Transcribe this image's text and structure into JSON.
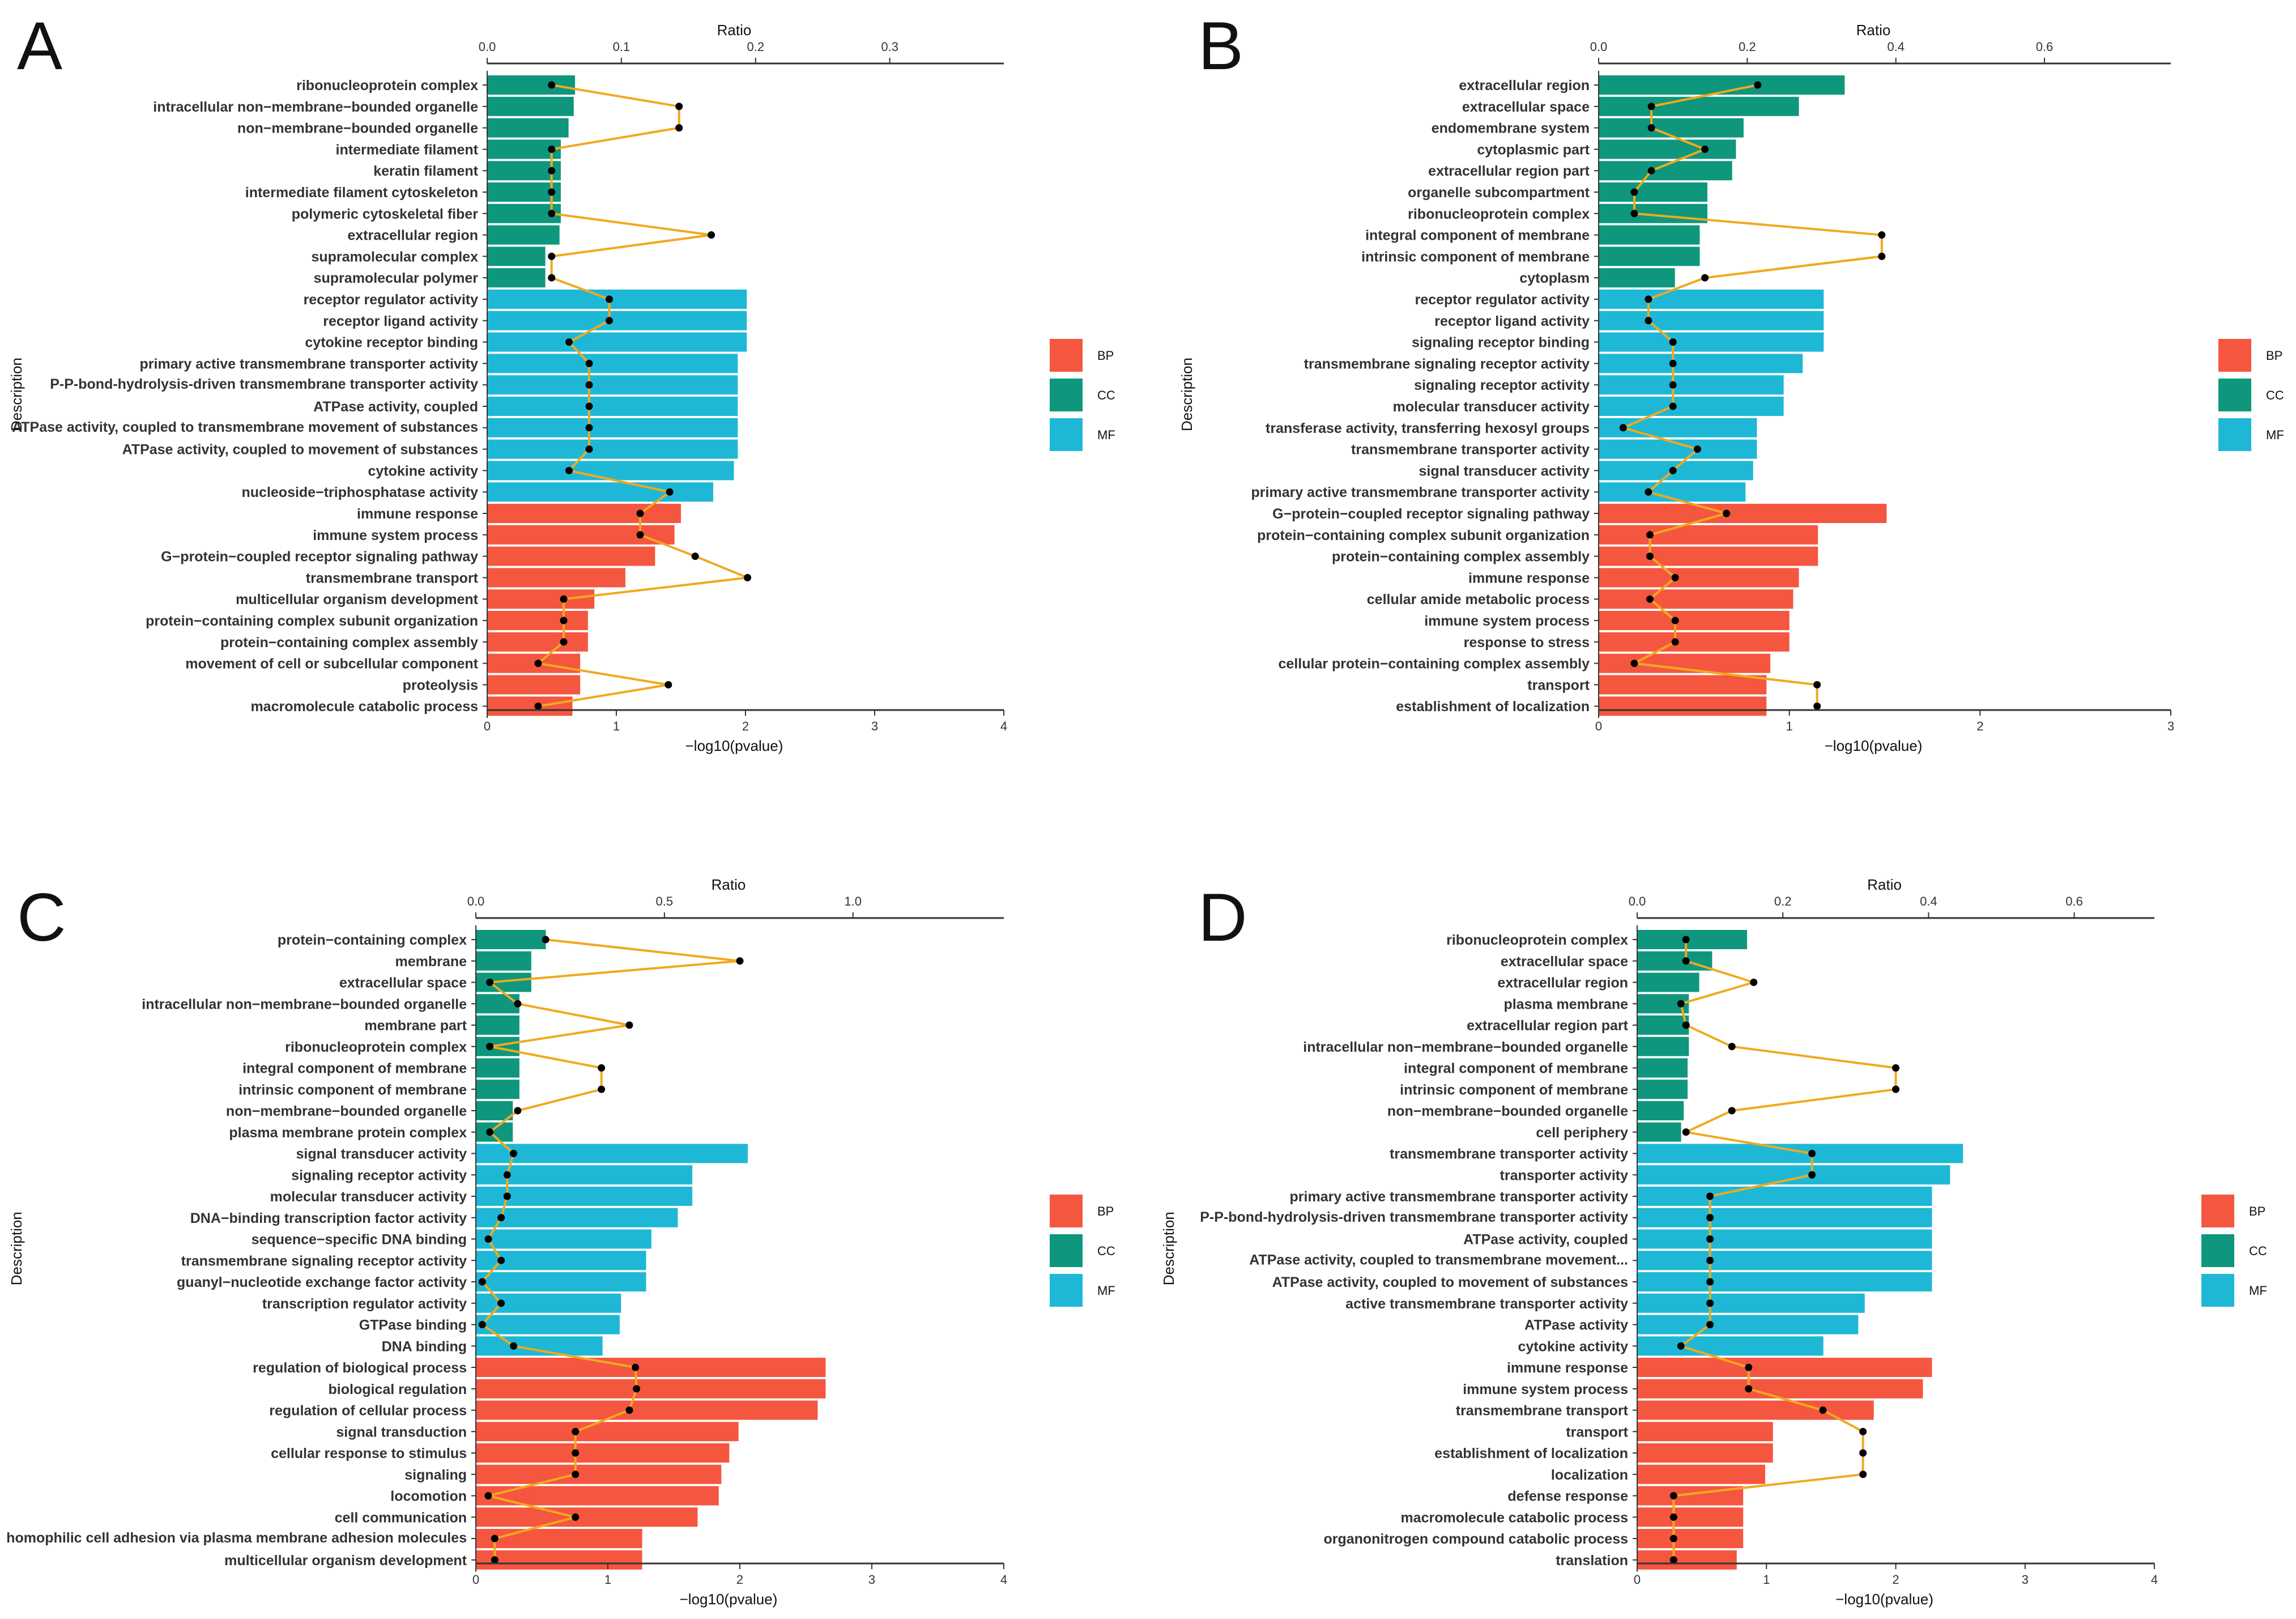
{
  "colors": {
    "BP": "#F5563F",
    "CC": "#0E977C",
    "MF": "#1EB8D6",
    "line": "#F0A91E",
    "point": "#000000"
  },
  "chart_data": [
    {
      "type": "bar",
      "panel": "A",
      "xlabel": "−log10(pvalue)",
      "ylabel": "Description",
      "ratio_label": "Ratio",
      "xlim": [
        0,
        4
      ],
      "xticks": [
        "0",
        "1",
        "2",
        "3",
        "4"
      ],
      "ratio_lim": [
        0,
        0.385
      ],
      "ratio_ticks": [
        "0.0",
        "0.1",
        "0.2",
        "0.3"
      ],
      "legend": [
        "BP",
        "CC",
        "MF"
      ],
      "categories": [
        "ribonucleoprotein complex",
        "intracellular non−membrane−bounded organelle",
        "non−membrane−bounded organelle",
        "intermediate filament",
        "keratin filament",
        "intermediate filament cytoskeleton",
        "polymeric cytoskeletal fiber",
        "extracellular region",
        "supramolecular complex",
        "supramolecular polymer",
        "receptor regulator activity",
        "receptor ligand activity",
        "cytokine receptor binding",
        "primary active transmembrane transporter activity",
        "P-P-bond-hydrolysis-driven transmembrane transporter activity",
        "ATPase activity, coupled",
        "ATPase activity, coupled to transmembrane movement of substances",
        "ATPase activity, coupled to movement of substances",
        "cytokine activity",
        "nucleoside−triphosphatase activity",
        "immune response",
        "immune system process",
        "G−protein−coupled receptor signaling pathway",
        "transmembrane transport",
        "multicellular organism development",
        "protein−containing complex subunit organization",
        "protein−containing complex assembly",
        "movement of cell or subcellular component",
        "proteolysis",
        "macromolecule catabolic process"
      ],
      "groups": [
        "CC",
        "CC",
        "CC",
        "CC",
        "CC",
        "CC",
        "CC",
        "CC",
        "CC",
        "CC",
        "MF",
        "MF",
        "MF",
        "MF",
        "MF",
        "MF",
        "MF",
        "MF",
        "MF",
        "MF",
        "BP",
        "BP",
        "BP",
        "BP",
        "BP",
        "BP",
        "BP",
        "BP",
        "BP",
        "BP"
      ],
      "values": [
        0.68,
        0.67,
        0.63,
        0.57,
        0.57,
        0.57,
        0.57,
        0.56,
        0.45,
        0.45,
        2.01,
        2.01,
        2.01,
        1.94,
        1.94,
        1.94,
        1.94,
        1.94,
        1.91,
        1.75,
        1.5,
        1.45,
        1.3,
        1.07,
        0.83,
        0.78,
        0.78,
        0.72,
        0.72,
        0.66
      ],
      "ratio": [
        0.048,
        0.143,
        0.143,
        0.048,
        0.048,
        0.048,
        0.048,
        0.167,
        0.048,
        0.048,
        0.091,
        0.091,
        0.061,
        0.076,
        0.076,
        0.076,
        0.076,
        0.076,
        0.061,
        0.136,
        0.114,
        0.114,
        0.155,
        0.194,
        0.057,
        0.057,
        0.057,
        0.038,
        0.135,
        0.038
      ]
    },
    {
      "type": "bar",
      "panel": "B",
      "xlabel": "−log10(pvalue)",
      "ylabel": "Description",
      "ratio_label": "Ratio",
      "xlim": [
        0,
        3
      ],
      "xticks": [
        "0",
        "1",
        "2",
        "3"
      ],
      "ratio_lim": [
        0,
        0.77
      ],
      "ratio_ticks": [
        "0.0",
        "0.2",
        "0.4",
        "0.6"
      ],
      "legend": [
        "BP",
        "CC",
        "MF"
      ],
      "categories": [
        "extracellular region",
        "extracellular space",
        "endomembrane system",
        "cytoplasmic part",
        "extracellular region part",
        "organelle subcompartment",
        "ribonucleoprotein complex",
        "integral component of membrane",
        "intrinsic component of membrane",
        "cytoplasm",
        "receptor regulator activity",
        "receptor ligand activity",
        "signaling receptor binding",
        "transmembrane signaling receptor activity",
        "signaling receptor activity",
        "molecular transducer activity",
        "transferase activity, transferring hexosyl groups",
        "transmembrane transporter activity",
        "signal transducer activity",
        "primary active transmembrane transporter activity",
        "G−protein−coupled receptor signaling pathway",
        "protein−containing complex subunit organization",
        "protein−containing complex assembly",
        "immune response",
        "cellular amide metabolic process",
        "immune system process",
        "response to stress",
        "cellular protein−containing complex assembly",
        "transport",
        "establishment of localization"
      ],
      "groups": [
        "CC",
        "CC",
        "CC",
        "CC",
        "CC",
        "CC",
        "CC",
        "CC",
        "CC",
        "CC",
        "MF",
        "MF",
        "MF",
        "MF",
        "MF",
        "MF",
        "MF",
        "MF",
        "MF",
        "MF",
        "BP",
        "BP",
        "BP",
        "BP",
        "BP",
        "BP",
        "BP",
        "BP",
        "BP",
        "BP"
      ],
      "values": [
        1.29,
        1.05,
        0.76,
        0.72,
        0.7,
        0.57,
        0.57,
        0.53,
        0.53,
        0.4,
        1.18,
        1.18,
        1.18,
        1.07,
        0.97,
        0.97,
        0.83,
        0.83,
        0.81,
        0.77,
        1.51,
        1.15,
        1.15,
        1.05,
        1.02,
        1.0,
        1.0,
        0.9,
        0.88,
        0.88
      ],
      "ratio": [
        0.214,
        0.071,
        0.071,
        0.143,
        0.071,
        0.048,
        0.048,
        0.381,
        0.381,
        0.143,
        0.067,
        0.067,
        0.1,
        0.1,
        0.1,
        0.1,
        0.033,
        0.133,
        0.1,
        0.067,
        0.172,
        0.069,
        0.069,
        0.103,
        0.069,
        0.103,
        0.103,
        0.048,
        0.294,
        0.294
      ]
    },
    {
      "type": "bar",
      "panel": "C",
      "xlabel": "−log10(pvalue)",
      "ylabel": "Description",
      "ratio_label": "Ratio",
      "xlim": [
        0,
        4
      ],
      "xticks": [
        "0",
        "1",
        "2",
        "3",
        "4"
      ],
      "ratio_lim": [
        0,
        1.4
      ],
      "ratio_ticks": [
        "0.0",
        "0.5",
        "1.0"
      ],
      "legend": [
        "BP",
        "CC",
        "MF"
      ],
      "categories": [
        "protein−containing complex",
        "membrane",
        "extracellular space",
        "intracellular non−membrane−bounded organelle",
        "membrane part",
        "ribonucleoprotein complex",
        "integral component of membrane",
        "intrinsic component of membrane",
        "non−membrane−bounded organelle",
        "plasma membrane protein complex",
        "signal transducer activity",
        "signaling receptor activity",
        "molecular transducer activity",
        "DNA−binding transcription factor activity",
        "sequence−specific DNA binding",
        "transmembrane signaling receptor activity",
        "guanyl−nucleotide exchange factor activity",
        "transcription regulator activity",
        "GTPase binding",
        "DNA binding",
        "regulation of biological process",
        "biological regulation",
        "regulation of cellular process",
        "signal transduction",
        "cellular response to stimulus",
        "signaling",
        "locomotion",
        "cell communication",
        "homophilic cell adhesion via plasma membrane adhesion molecules",
        "multicellular organism development"
      ],
      "groups": [
        "CC",
        "CC",
        "CC",
        "CC",
        "CC",
        "CC",
        "CC",
        "CC",
        "CC",
        "CC",
        "MF",
        "MF",
        "MF",
        "MF",
        "MF",
        "MF",
        "MF",
        "MF",
        "MF",
        "MF",
        "BP",
        "BP",
        "BP",
        "BP",
        "BP",
        "BP",
        "BP",
        "BP",
        "BP",
        "BP"
      ],
      "values": [
        0.53,
        0.42,
        0.42,
        0.33,
        0.33,
        0.33,
        0.33,
        0.33,
        0.28,
        0.28,
        2.06,
        1.64,
        1.64,
        1.53,
        1.33,
        1.29,
        1.29,
        1.1,
        1.09,
        0.96,
        2.65,
        2.65,
        2.59,
        1.99,
        1.92,
        1.86,
        1.84,
        1.68,
        1.26,
        1.26
      ],
      "ratio": [
        0.185,
        0.7,
        0.037,
        0.111,
        0.407,
        0.037,
        0.333,
        0.333,
        0.111,
        0.037,
        0.1,
        0.083,
        0.083,
        0.067,
        0.033,
        0.067,
        0.017,
        0.067,
        0.017,
        0.1,
        0.423,
        0.426,
        0.407,
        0.264,
        0.264,
        0.264,
        0.033,
        0.264,
        0.05,
        0.05
      ]
    },
    {
      "type": "bar",
      "panel": "D",
      "xlabel": "−log10(pvalue)",
      "ylabel": "Description",
      "ratio_label": "Ratio",
      "xlim": [
        0,
        4
      ],
      "xticks": [
        "0",
        "1",
        "2",
        "3",
        "4"
      ],
      "ratio_lim": [
        0,
        0.71
      ],
      "ratio_ticks": [
        "0.0",
        "0.2",
        "0.4",
        "0.6"
      ],
      "legend": [
        "BP",
        "CC",
        "MF"
      ],
      "categories": [
        "ribonucleoprotein complex",
        "extracellular space",
        "extracellular region",
        "plasma membrane",
        "extracellular region part",
        "intracellular non−membrane−bounded organelle",
        "integral component of membrane",
        "intrinsic component of membrane",
        "non−membrane−bounded organelle",
        "cell periphery",
        "transmembrane transporter activity",
        "transporter activity",
        "primary active transmembrane transporter activity",
        "P-P-bond-hydrolysis-driven transmembrane transporter activity",
        "ATPase activity, coupled",
        "ATPase activity, coupled to transmembrane movement...",
        "ATPase activity, coupled to movement of substances",
        "active transmembrane transporter activity",
        "ATPase activity",
        "cytokine activity",
        "immune response",
        "immune system process",
        "transmembrane transport",
        "transport",
        "establishment of localization",
        "localization",
        "defense response",
        "macromolecule catabolic process",
        "organonitrogen compound catabolic process",
        "translation"
      ],
      "groups": [
        "CC",
        "CC",
        "CC",
        "CC",
        "CC",
        "CC",
        "CC",
        "CC",
        "CC",
        "CC",
        "MF",
        "MF",
        "MF",
        "MF",
        "MF",
        "MF",
        "MF",
        "MF",
        "MF",
        "MF",
        "BP",
        "BP",
        "BP",
        "BP",
        "BP",
        "BP",
        "BP",
        "BP",
        "BP",
        "BP"
      ],
      "values": [
        0.85,
        0.58,
        0.48,
        0.4,
        0.4,
        0.4,
        0.39,
        0.39,
        0.36,
        0.34,
        2.52,
        2.42,
        2.28,
        2.28,
        2.28,
        2.28,
        2.28,
        1.76,
        1.71,
        1.44,
        2.28,
        2.21,
        1.83,
        1.05,
        1.05,
        0.99,
        0.82,
        0.82,
        0.82,
        0.77
      ],
      "ratio": [
        0.067,
        0.067,
        0.16,
        0.06,
        0.067,
        0.13,
        0.355,
        0.355,
        0.13,
        0.067,
        0.24,
        0.24,
        0.1,
        0.1,
        0.1,
        0.1,
        0.1,
        0.1,
        0.1,
        0.06,
        0.153,
        0.153,
        0.255,
        0.31,
        0.31,
        0.31,
        0.05,
        0.05,
        0.05,
        0.05
      ]
    }
  ]
}
